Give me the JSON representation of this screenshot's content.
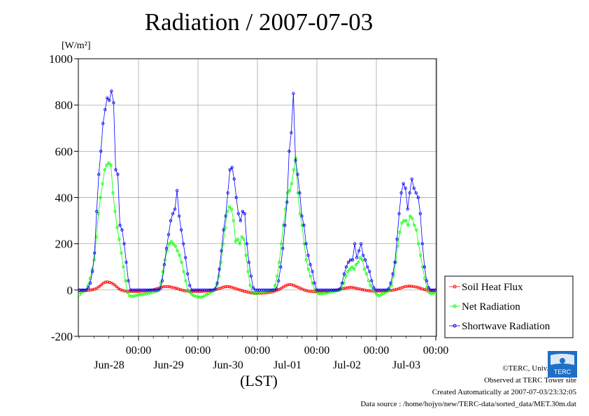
{
  "chart_data": {
    "type": "line",
    "title": "Radiation / 2007-07-03",
    "ylabel": "[W/m²]",
    "xlabel": "(LST)",
    "ylim": [
      -200,
      1000
    ],
    "yticks": [
      -200,
      0,
      200,
      400,
      600,
      800,
      1000
    ],
    "x_range_days": [
      "Jun-27 12:00",
      "Jul-04 00:00"
    ],
    "x_tick_time_label": "00:00",
    "x_day_labels": [
      "Jun-28",
      "Jun-29",
      "Jun-30",
      "Jul-01",
      "Jul-02",
      "Jul-03"
    ],
    "grid": true,
    "legend_position": "bottom-right outside",
    "series": [
      {
        "name": "Soil Heat Flux",
        "color": "#ff0000",
        "values": [
          -3,
          -3,
          -2,
          -2,
          -1,
          0,
          2,
          4,
          8,
          14,
          22,
          30,
          34,
          35,
          33,
          30,
          24,
          16,
          8,
          2,
          -2,
          -4,
          -5,
          -6,
          -6,
          -6,
          -6,
          -6,
          -6,
          -5,
          -5,
          -4,
          -3,
          -2,
          0,
          3,
          6,
          9,
          12,
          14,
          15,
          15,
          14,
          12,
          10,
          8,
          5,
          2,
          -1,
          -3,
          -4,
          -5,
          -6,
          -6,
          -6,
          -6,
          -6,
          -6,
          -5,
          -5,
          -4,
          -3,
          -1,
          1,
          3,
          6,
          9,
          12,
          14,
          15,
          14,
          12,
          9,
          6,
          3,
          0,
          -3,
          -6,
          -8,
          -10,
          -12,
          -13,
          -14,
          -14,
          -14,
          -14,
          -13,
          -12,
          -11,
          -10,
          -8,
          -5,
          -2,
          2,
          7,
          13,
          18,
          22,
          24,
          23,
          20,
          16,
          12,
          8,
          4,
          0,
          -3,
          -5,
          -6,
          -7,
          -7,
          -7,
          -7,
          -7,
          -6,
          -6,
          -5,
          -4,
          -3,
          -2,
          0,
          2,
          4,
          6,
          8,
          10,
          11,
          11,
          10,
          8,
          6,
          4,
          2,
          0,
          -2,
          -3,
          -4,
          -5,
          -5,
          -5,
          -5,
          -5,
          -4,
          -4,
          -3,
          -2,
          -1,
          1,
          3,
          6,
          9,
          12,
          15,
          16,
          17,
          16,
          15,
          13,
          11,
          8,
          5,
          2,
          0,
          -2,
          -3,
          -3,
          -3
        ],
        "note": "approximated sampled values, 30-min interval"
      },
      {
        "name": "Net Radiation",
        "color": "#00ff00",
        "values": [
          -20,
          -10,
          -5,
          0,
          20,
          50,
          90,
          130,
          230,
          330,
          400,
          460,
          520,
          540,
          550,
          540,
          420,
          340,
          270,
          220,
          160,
          100,
          40,
          -10,
          -25,
          -28,
          -26,
          -24,
          -22,
          -20,
          -20,
          -18,
          -16,
          -14,
          -12,
          -10,
          -8,
          -5,
          0,
          30,
          80,
          130,
          170,
          200,
          210,
          200,
          190,
          170,
          150,
          120,
          80,
          40,
          0,
          -10,
          -20,
          -25,
          -28,
          -30,
          -30,
          -30,
          -25,
          -20,
          -15,
          -10,
          -5,
          0,
          20,
          60,
          120,
          200,
          270,
          340,
          360,
          350,
          300,
          210,
          220,
          200,
          230,
          220,
          150,
          80,
          20,
          -10,
          -15,
          -15,
          -12,
          -10,
          -10,
          -8,
          -6,
          -4,
          -2,
          0,
          20,
          60,
          120,
          200,
          280,
          350,
          420,
          430,
          460,
          520,
          570,
          420,
          330,
          280,
          200,
          130,
          90,
          60,
          30,
          0,
          -10,
          -15,
          -15,
          -15,
          -14,
          -12,
          -10,
          -8,
          -6,
          -4,
          -2,
          0,
          10,
          30,
          60,
          80,
          90,
          100,
          90,
          110,
          120,
          140,
          130,
          90,
          70,
          40,
          20,
          0,
          -10,
          -20,
          -25,
          -20,
          -15,
          -10,
          -5,
          0,
          20,
          60,
          120,
          190,
          250,
          290,
          300,
          300,
          280,
          320,
          310,
          280,
          260,
          200,
          150,
          100,
          50,
          10,
          -10,
          -15,
          -15,
          -10
        ],
        "note": "approximated sampled values, 30-min interval"
      },
      {
        "name": "Shortwave Radiation",
        "color": "#0000ff",
        "values": [
          0,
          0,
          0,
          0,
          10,
          30,
          80,
          160,
          340,
          500,
          600,
          720,
          780,
          830,
          820,
          860,
          810,
          520,
          500,
          280,
          260,
          200,
          120,
          40,
          0,
          0,
          0,
          0,
          0,
          0,
          0,
          0,
          0,
          0,
          0,
          0,
          0,
          0,
          5,
          40,
          110,
          180,
          240,
          300,
          330,
          350,
          430,
          320,
          260,
          200,
          140,
          70,
          20,
          0,
          0,
          0,
          0,
          0,
          0,
          0,
          0,
          0,
          0,
          0,
          5,
          30,
          90,
          170,
          260,
          320,
          420,
          520,
          530,
          480,
          400,
          330,
          300,
          340,
          330,
          200,
          120,
          60,
          10,
          0,
          0,
          0,
          0,
          0,
          0,
          0,
          0,
          0,
          0,
          5,
          40,
          100,
          180,
          280,
          380,
          600,
          680,
          850,
          560,
          500,
          420,
          320,
          280,
          200,
          150,
          110,
          80,
          30,
          0,
          0,
          0,
          0,
          0,
          0,
          0,
          0,
          0,
          0,
          0,
          5,
          30,
          70,
          100,
          120,
          130,
          130,
          200,
          140,
          170,
          200,
          150,
          130,
          100,
          80,
          40,
          10,
          0,
          0,
          0,
          0,
          0,
          0,
          5,
          30,
          70,
          120,
          220,
          330,
          420,
          460,
          440,
          350,
          420,
          480,
          440,
          420,
          400,
          330,
          200,
          100,
          40,
          10,
          0,
          0,
          0
        ],
        "note": "approximated sampled values, 30-min interval"
      }
    ]
  },
  "footer": {
    "credit": "©TERC, Univ. Tsukuba",
    "site": "Observed at TERC Tower site",
    "created": "Created Automatically at 2007-07-03/23:32:05",
    "source": "Data source : /home/hojyo/new/TERC-data/sorted_data/MET.30m.dat"
  },
  "logo_text": "TERC"
}
